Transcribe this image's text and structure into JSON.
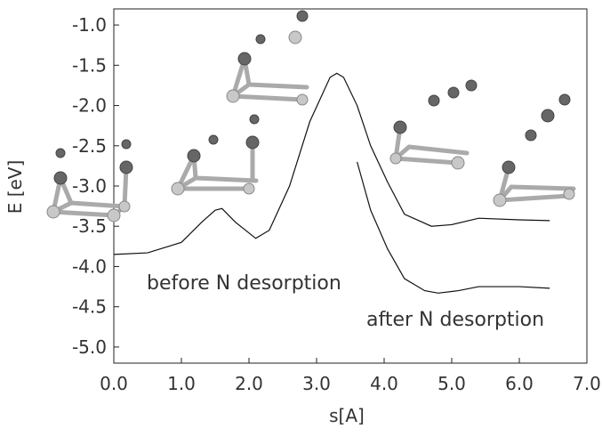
{
  "chart_data": {
    "type": "line",
    "xlabel": "s[A]",
    "ylabel": "E [eV]",
    "xlim": [
      0,
      7
    ],
    "xticks": [
      {
        "value": 0,
        "label": "0.0"
      },
      {
        "value": 1,
        "label": "1.0"
      },
      {
        "value": 2,
        "label": "2.0"
      },
      {
        "value": 3,
        "label": "3.0"
      },
      {
        "value": 4,
        "label": "4.0"
      },
      {
        "value": 5,
        "label": "5.0"
      },
      {
        "value": 6,
        "label": "6.0"
      },
      {
        "value": 7,
        "label": "7.0"
      }
    ],
    "ylim": [
      -5.2,
      -0.8
    ],
    "yticks": [
      {
        "value": -1,
        "label": "-1.0"
      },
      -1.5,
      {
        "value": -2,
        "label": "-2.0"
      },
      -2.5,
      {
        "value": -3,
        "label": "-3.0"
      },
      -3.5,
      {
        "value": -4,
        "label": "-4.0"
      },
      -4.5,
      {
        "value": -5,
        "label": "-5.0"
      }
    ],
    "series": [
      {
        "name": "before N desorption",
        "color": "#111111",
        "x": [
          0,
          0.5,
          1.0,
          1.3,
          1.5,
          1.6,
          1.8,
          2.1,
          2.3,
          2.6,
          2.9,
          3.2,
          3.3,
          3.4,
          3.6,
          3.8,
          4.05,
          4.3,
          4.7,
          5.0,
          5.4,
          6.0,
          6.45
        ],
        "values": [
          -3.85,
          -3.83,
          -3.7,
          -3.45,
          -3.3,
          -3.28,
          -3.45,
          -3.65,
          -3.55,
          -3.0,
          -2.2,
          -1.65,
          -1.6,
          -1.65,
          -2.0,
          -2.5,
          -2.95,
          -3.35,
          -3.5,
          -3.48,
          -3.4,
          -3.42,
          -3.43
        ]
      },
      {
        "name": "after N desorption",
        "color": "#111111",
        "x": [
          3.6,
          3.8,
          4.05,
          4.3,
          4.6,
          4.8,
          5.1,
          5.4,
          6.0,
          6.45
        ],
        "values": [
          -2.7,
          -3.3,
          -3.78,
          -4.15,
          -4.3,
          -4.33,
          -4.3,
          -4.25,
          -4.25,
          -4.27
        ]
      }
    ]
  }
}
